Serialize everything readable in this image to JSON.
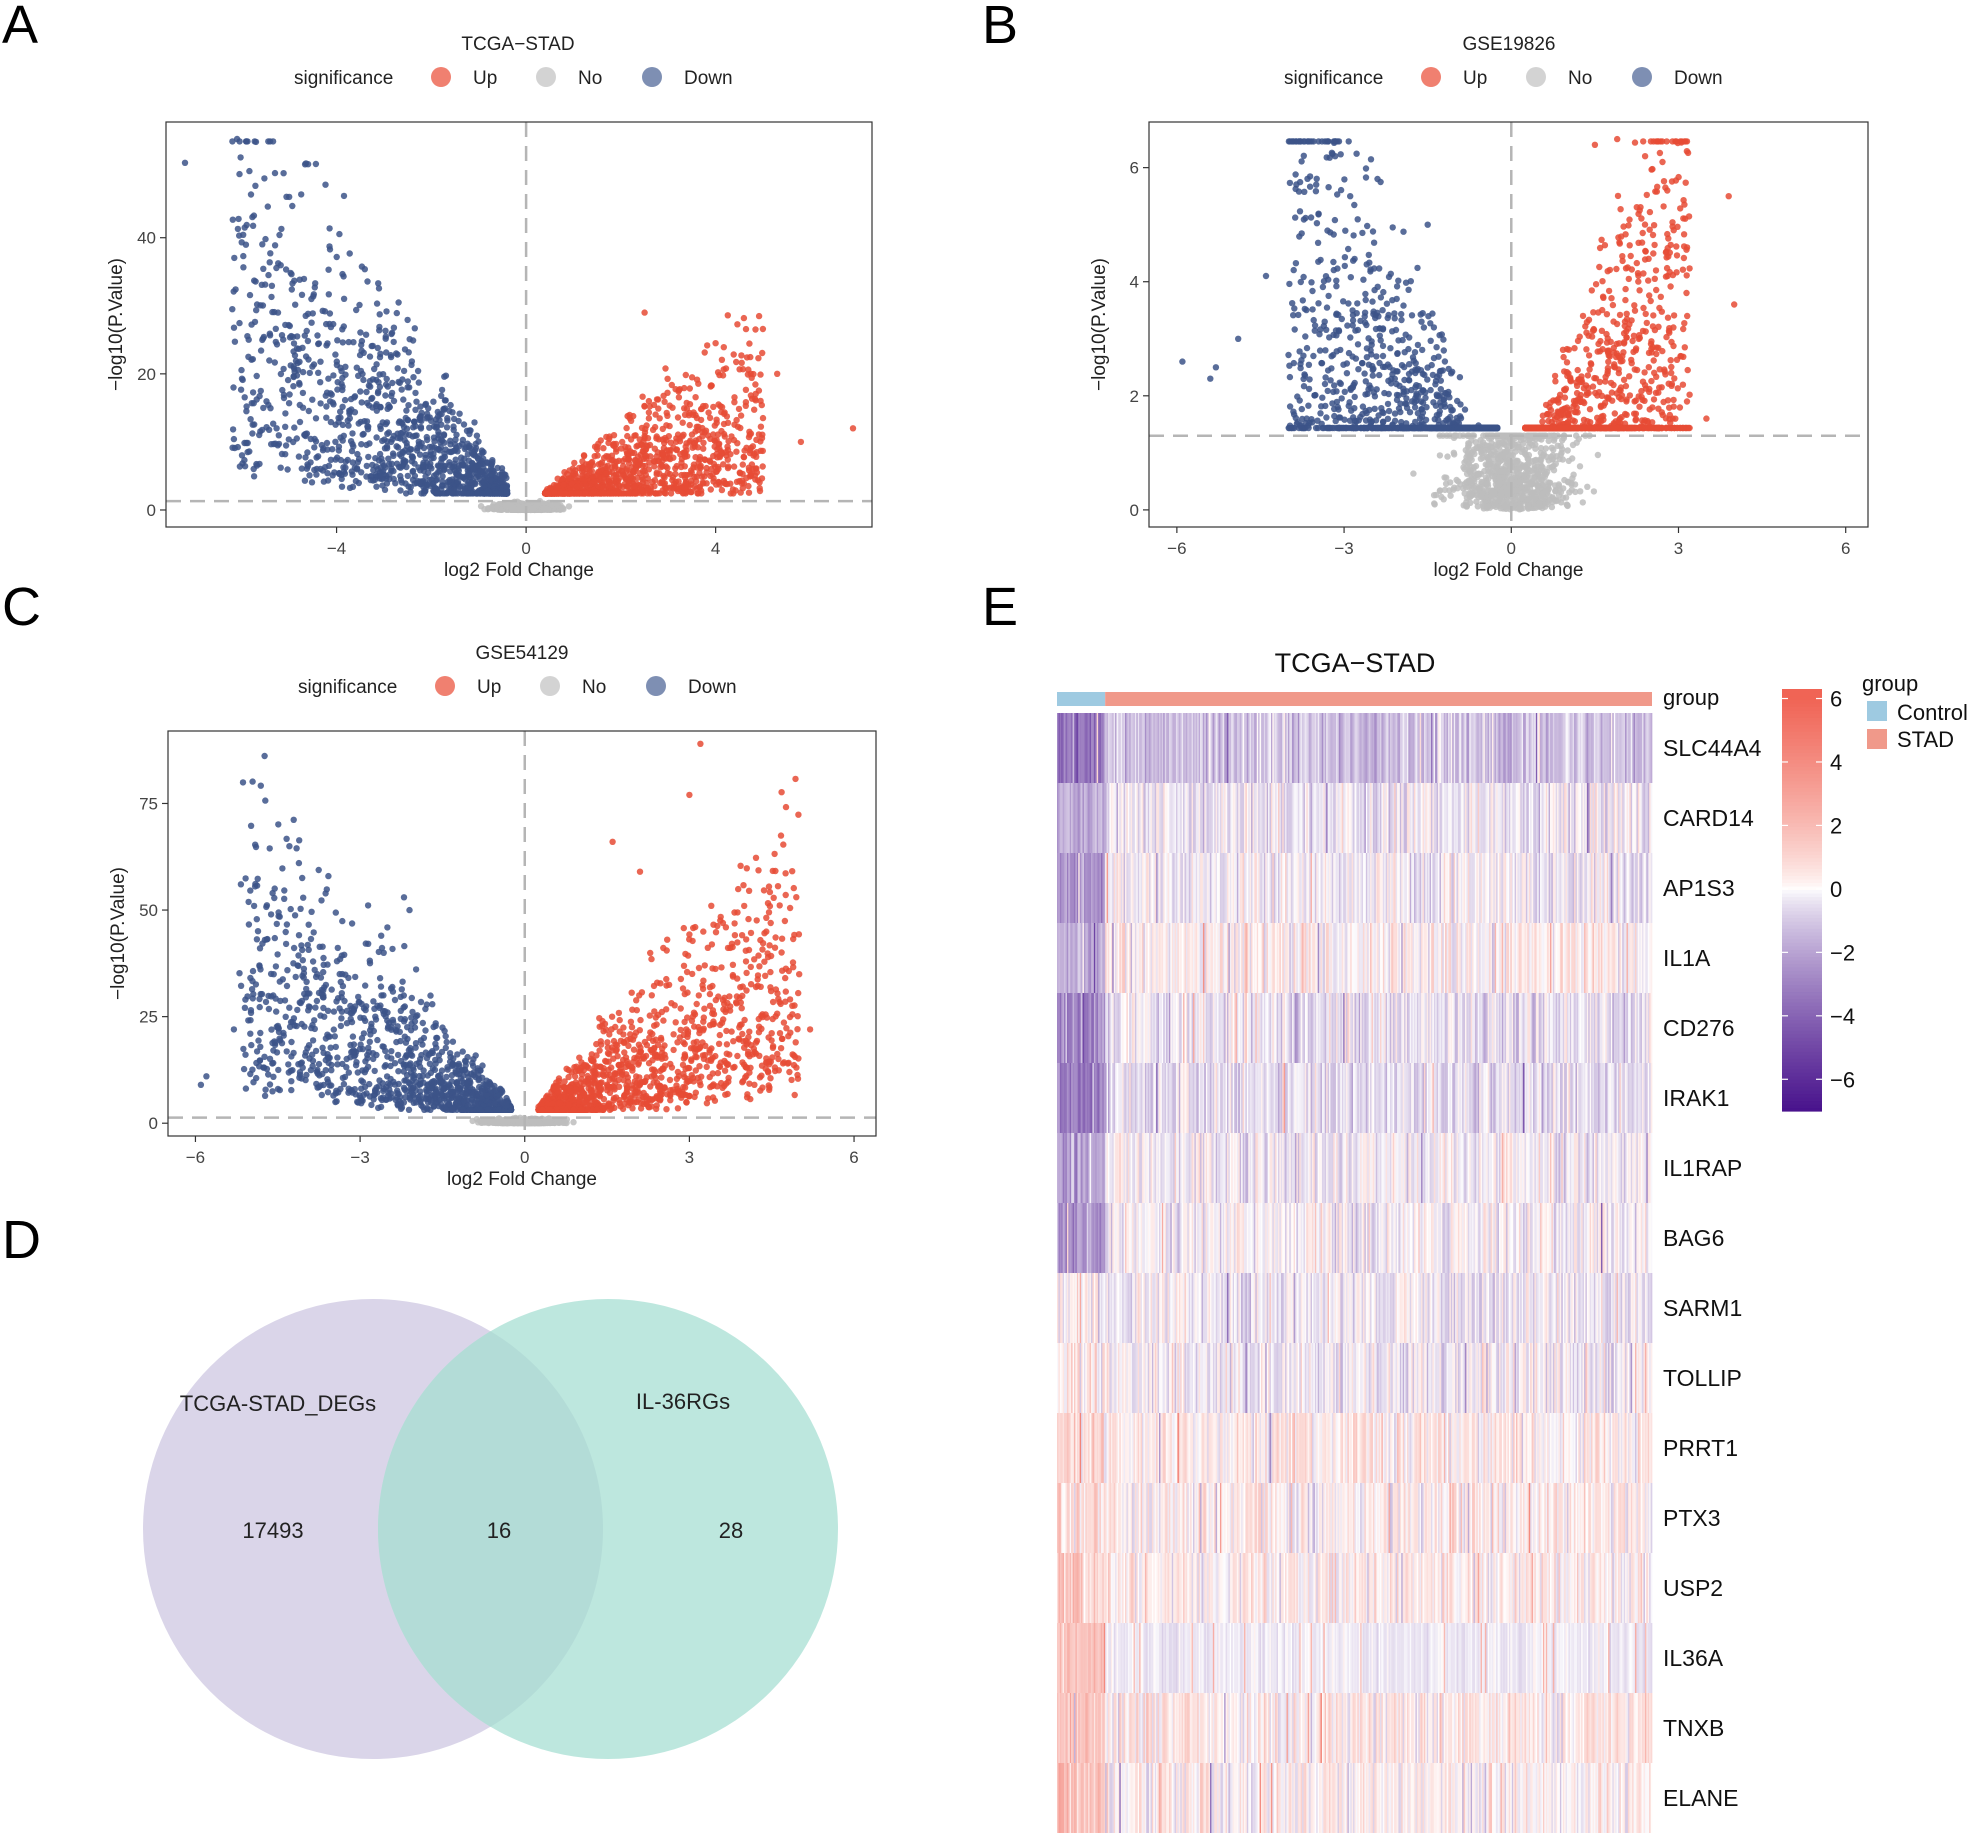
{
  "panels": {
    "A": {
      "letter": "A"
    },
    "B": {
      "letter": "B"
    },
    "C": {
      "letter": "C"
    },
    "D": {
      "letter": "D"
    },
    "E": {
      "letter": "E"
    }
  },
  "colors": {
    "up": "#e64b35",
    "up_legend": "#f08070",
    "no": "#bdbdbd",
    "no_legend": "#d3d3d3",
    "down": "#3c5488",
    "down_legend": "#7e8fb3",
    "control": "#9ecae1",
    "stad": "#f0998a",
    "venn_left": "#d8d3e8",
    "venn_right": "#b9e6dc"
  },
  "chart_data": [
    {
      "id": "A",
      "type": "scatter",
      "title": "TCGA−STAD",
      "xlabel": "log2 Fold Change",
      "ylabel": "−log10(P.Value)",
      "xlim": [
        -7.6,
        7.3
      ],
      "ylim": [
        -2.5,
        57
      ],
      "xticks": [
        -4,
        0,
        4
      ],
      "xtick_labels": [
        "−4",
        "0",
        "4"
      ],
      "yticks": [
        0,
        20,
        40
      ],
      "ytick_labels": [
        "0",
        "20",
        "40"
      ],
      "legend": {
        "title": "significance",
        "entries": [
          "Up",
          "No",
          "Down"
        ]
      },
      "thresholds": {
        "logfc": 0,
        "p_line": 1.3
      },
      "shape": {
        "down_xmin": -6.2,
        "down_xmax": -0.4,
        "up_xmin": 0.4,
        "up_xmax": 5.0,
        "down_k": 9.0,
        "up_k": 5.2
      },
      "outliers_down": [
        [
          -7.2,
          51
        ],
        [
          -6.1,
          54.5
        ],
        [
          -5.3,
          49.5
        ],
        [
          -4.6,
          50.8
        ],
        [
          -5.0,
          46
        ],
        [
          -6.2,
          29.5
        ],
        [
          -5.5,
          39.8
        ],
        [
          -5.9,
          15.2
        ],
        [
          -5.6,
          17.5
        ]
      ],
      "outliers_up": [
        [
          6.9,
          12
        ],
        [
          5.3,
          20
        ],
        [
          5.0,
          13.5
        ],
        [
          2.5,
          29
        ],
        [
          4.0,
          24.5
        ],
        [
          5.8,
          10
        ],
        [
          4.8,
          8
        ]
      ]
    },
    {
      "id": "B",
      "type": "scatter",
      "title": "GSE19826",
      "xlabel": "log2 Fold Change",
      "ylabel": "−log10(P.Value)",
      "xlim": [
        -6.5,
        6.4
      ],
      "ylim": [
        -0.3,
        6.8
      ],
      "xticks": [
        -6,
        -3,
        0,
        3,
        6
      ],
      "xtick_labels": [
        "−6",
        "−3",
        "0",
        "3",
        "6"
      ],
      "yticks": [
        0,
        2,
        4,
        6
      ],
      "ytick_labels": [
        "0",
        "2",
        "4",
        "6"
      ],
      "legend": {
        "title": "significance",
        "entries": [
          "Up",
          "No",
          "Down"
        ]
      },
      "thresholds": {
        "logfc": 0,
        "p_line": 1.3
      },
      "shape": {
        "down_xmin": -4.0,
        "down_xmax": -0.25,
        "up_xmin": 0.25,
        "up_xmax": 3.2,
        "down_k": 1.9,
        "up_k": 2.3
      },
      "outliers_down": [
        [
          -5.9,
          2.6
        ],
        [
          -5.3,
          2.5
        ],
        [
          -4.4,
          4.1
        ],
        [
          -4.9,
          3.0
        ],
        [
          -5.4,
          2.3
        ],
        [
          -2.4,
          5.8
        ],
        [
          -1.5,
          5.0
        ]
      ],
      "outliers_up": [
        [
          1.9,
          6.5
        ],
        [
          3.9,
          5.5
        ],
        [
          4.0,
          3.6
        ],
        [
          3.5,
          1.6
        ],
        [
          2.8,
          5.6
        ],
        [
          1.5,
          6.4
        ],
        [
          2.4,
          6.2
        ]
      ]
    },
    {
      "id": "C",
      "type": "scatter",
      "title": "GSE54129",
      "xlabel": "log2 Fold Change",
      "ylabel": "−log10(P.Value)",
      "xlim": [
        -6.5,
        6.4
      ],
      "ylim": [
        -3,
        92
      ],
      "xticks": [
        -6,
        -3,
        0,
        3,
        6
      ],
      "xtick_labels": [
        "−6",
        "−3",
        "0",
        "3",
        "6"
      ],
      "yticks": [
        0,
        25,
        50,
        75
      ],
      "ytick_labels": [
        "0",
        "25",
        "50",
        "75"
      ],
      "legend": {
        "title": "significance",
        "entries": [
          "Up",
          "No",
          "Down"
        ]
      },
      "thresholds": {
        "logfc": 0,
        "p_line": 1.3
      },
      "shape": {
        "down_xmin": -5.2,
        "down_xmax": -0.25,
        "up_xmin": 0.25,
        "up_xmax": 5.0,
        "down_k": 14,
        "up_k": 13
      },
      "outliers_down": [
        [
          -5.9,
          9
        ],
        [
          -5.8,
          11
        ],
        [
          -5.3,
          22
        ],
        [
          -5.0,
          21
        ],
        [
          -4.6,
          14
        ],
        [
          -2.2,
          53
        ],
        [
          -2.1,
          50
        ]
      ],
      "outliers_up": [
        [
          3.2,
          89
        ],
        [
          3.0,
          77
        ],
        [
          5.2,
          22
        ],
        [
          1.6,
          66
        ],
        [
          2.1,
          59
        ],
        [
          4.3,
          32
        ],
        [
          3.4,
          51
        ]
      ]
    }
  ],
  "venn": {
    "sets": [
      {
        "label": "TCGA-STAD_DEGs",
        "only": "17493"
      },
      {
        "label": "IL-36RGs",
        "only": "28"
      }
    ],
    "intersection": "16"
  },
  "heatmap": {
    "title": "TCGA−STAD",
    "annotation_label": "group",
    "legend_title": "group",
    "groups": [
      {
        "name": "Control",
        "fraction": 0.08
      },
      {
        "name": "STAD",
        "fraction": 0.92
      }
    ],
    "genes": [
      "SLC44A4",
      "CARD14",
      "AP1S3",
      "IL1A",
      "CD276",
      "IRAK1",
      "IL1RAP",
      "BAG6",
      "SARM1",
      "TOLLIP",
      "PRRT1",
      "PTX3",
      "USP2",
      "IL36A",
      "TNXB",
      "ELANE"
    ],
    "gene_bias": [
      -1.2,
      -0.3,
      -0.2,
      0.3,
      -0.5,
      -0.6,
      -0.1,
      -0.1,
      -0.3,
      -0.2,
      0.4,
      0.3,
      0.3,
      -0.2,
      0.4,
      0.2
    ],
    "control_bias": [
      -3.5,
      -1.6,
      -2.5,
      -1.6,
      -3.0,
      -3.0,
      -1.8,
      -2.5,
      0.2,
      0.6,
      0.9,
      0.8,
      1.4,
      1.6,
      1.6,
      1.8
    ],
    "colorbar": {
      "range": [
        -7,
        6.3
      ],
      "ticks": [
        6,
        4,
        2,
        0,
        -2,
        -4,
        -6
      ],
      "tick_labels": [
        "6",
        "4",
        "2",
        "0",
        "−2",
        "−4",
        "−6"
      ]
    },
    "n_samples": 420
  }
}
